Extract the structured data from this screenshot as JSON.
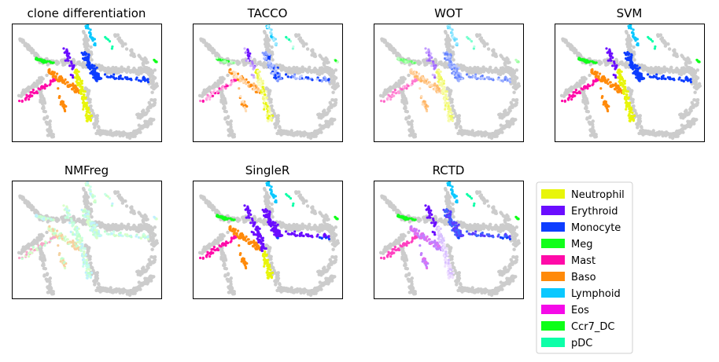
{
  "figure": {
    "legend": {
      "placement": "lower-right",
      "entries": [
        {
          "label": "Neutrophil",
          "color": "#e8f50a"
        },
        {
          "label": "Erythroid",
          "color": "#6a0dff"
        },
        {
          "label": "Monocyte",
          "color": "#0d3dff"
        },
        {
          "label": "Meg",
          "color": "#11ff1b"
        },
        {
          "label": "Mast",
          "color": "#ff0aa8"
        },
        {
          "label": "Baso",
          "color": "#ff8a0a"
        },
        {
          "label": "Lymphoid",
          "color": "#0ac8ff"
        },
        {
          "label": "Eos",
          "color": "#f50ae8"
        },
        {
          "label": "Ccr7_DC",
          "color": "#0dff17"
        },
        {
          "label": "pDC",
          "color": "#0dffa8"
        }
      ]
    },
    "background_color": "#cccccc"
  },
  "chart_data": [
    {
      "type": "scatter",
      "title": "clone differentiation",
      "style": "pure"
    },
    {
      "type": "scatter",
      "title": "TACCO",
      "style": "mixed"
    },
    {
      "type": "scatter",
      "title": "WOT",
      "style": "pale"
    },
    {
      "type": "scatter",
      "title": "SVM",
      "style": "pure"
    },
    {
      "type": "scatter",
      "title": "NMFreg",
      "style": "verypale"
    },
    {
      "type": "scatter",
      "title": "SingleR",
      "style": "erythroid"
    },
    {
      "type": "scatter",
      "title": "RCTD",
      "style": "rctd"
    }
  ]
}
